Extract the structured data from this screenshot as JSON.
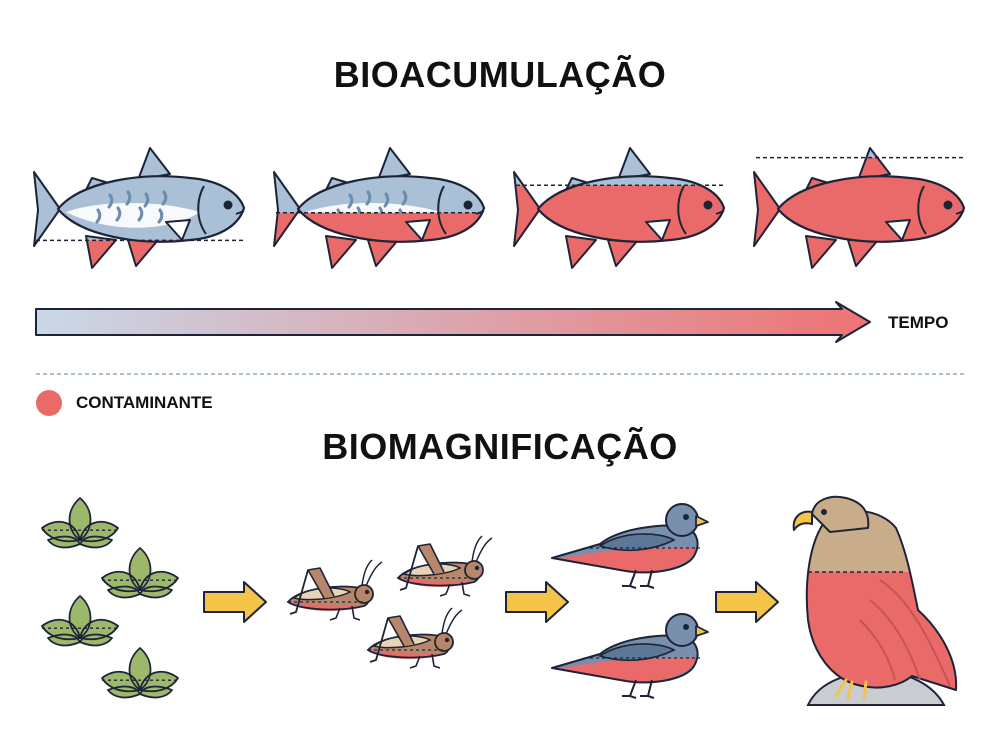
{
  "bioaccumulation": {
    "title": "BIOACUMULAÇÃO",
    "time_label": "TEMPO",
    "fish_contaminant_levels": [
      0.25,
      0.5,
      0.75,
      1.0
    ]
  },
  "legend": {
    "label": "CONTAMINANTE"
  },
  "biomagnification": {
    "title": "BIOMAGNIFICAÇÃO",
    "chain": [
      {
        "organism": "plant",
        "count": 4
      },
      {
        "organism": "grasshopper",
        "count": 3
      },
      {
        "organism": "bird",
        "count": 2
      },
      {
        "organism": "eagle",
        "count": 1
      }
    ],
    "contaminant_levels": {
      "plant": 0.3,
      "grasshopper": 0.35,
      "bird": 0.45,
      "eagle": 0.8
    }
  },
  "colors": {
    "contaminant": "#ea6a6a",
    "fish_body": "#a9c0d6",
    "fish_dark": "#6c8cad",
    "outline": "#1e2438",
    "leaf": "#9cb86a",
    "arrow": "#f3c447",
    "eagle_brown": "#c9ad8a",
    "rock": "#c9ccd1",
    "grasshopper": "#b8876a",
    "bird_blue": "#7890ad"
  }
}
